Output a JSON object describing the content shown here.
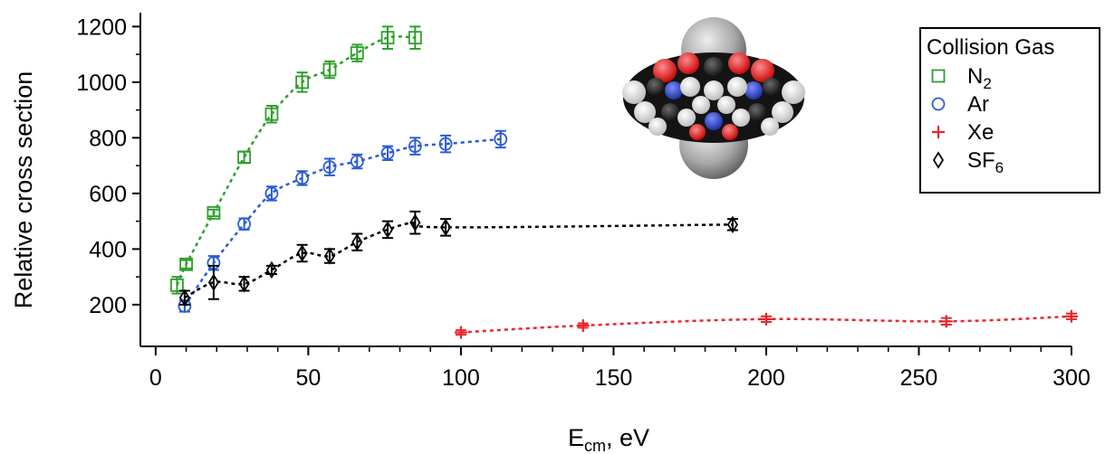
{
  "chart_data": {
    "type": "scatter",
    "title": "",
    "xlabel": "E",
    "xlabel_sub": "cm",
    "xlabel_suffix": ", eV",
    "ylabel": "Relative cross section",
    "xlim": [
      -5,
      300
    ],
    "ylim": [
      50,
      1250
    ],
    "xticks": [
      0,
      50,
      100,
      150,
      200,
      250,
      300
    ],
    "xtick_labels": [
      "0",
      "50",
      "100",
      "150",
      "200",
      "250",
      "300"
    ],
    "yticks": [
      200,
      400,
      600,
      800,
      1000,
      1200
    ],
    "ytick_labels": [
      "200",
      "400",
      "600",
      "800",
      "1000",
      "1200"
    ],
    "grid": false,
    "legend": {
      "title": "Collision Gas",
      "placement": "top-right",
      "entries": [
        {
          "text": "N",
          "sub": "2",
          "marker": "square",
          "color": "#2ca02c"
        },
        {
          "text": "Ar",
          "sub": "",
          "marker": "circle",
          "color": "#2a5bd7"
        },
        {
          "text": "Xe",
          "sub": "",
          "marker": "plus",
          "color": "#e8262b"
        },
        {
          "text": "SF",
          "sub": "6",
          "marker": "diamond",
          "color": "#000000"
        }
      ]
    },
    "series": [
      {
        "name": "N2",
        "marker": "square",
        "color": "#2ca02c",
        "x": [
          7,
          10,
          19,
          29,
          38,
          48,
          57,
          66,
          76,
          85
        ],
        "y": [
          270,
          345,
          530,
          730,
          885,
          1000,
          1045,
          1105,
          1160,
          1160
        ],
        "err": [
          30,
          15,
          12,
          20,
          30,
          35,
          30,
          30,
          40,
          40
        ]
      },
      {
        "name": "Ar",
        "marker": "circle",
        "color": "#2a5bd7",
        "x": [
          9.5,
          19,
          29,
          38,
          48,
          57,
          66,
          76,
          85,
          95,
          113
        ],
        "y": [
          195,
          350,
          490,
          600,
          655,
          695,
          715,
          745,
          770,
          778,
          795
        ],
        "err": [
          20,
          25,
          20,
          25,
          25,
          30,
          25,
          25,
          30,
          30,
          30
        ]
      },
      {
        "name": "Xe",
        "marker": "plus",
        "color": "#e8262b",
        "x": [
          100,
          140,
          200,
          259,
          300
        ],
        "y": [
          100,
          125,
          148,
          140,
          158
        ],
        "err": [
          8,
          8,
          10,
          12,
          10
        ]
      },
      {
        "name": "SF6",
        "marker": "diamond",
        "color": "#000000",
        "x": [
          9.5,
          19,
          29,
          38,
          48,
          57,
          66,
          76,
          85,
          95,
          189
        ],
        "y": [
          225,
          280,
          275,
          325,
          385,
          375,
          425,
          470,
          495,
          478,
          488
        ],
        "err": [
          25,
          60,
          25,
          15,
          30,
          25,
          30,
          30,
          40,
          30,
          20
        ]
      }
    ]
  }
}
